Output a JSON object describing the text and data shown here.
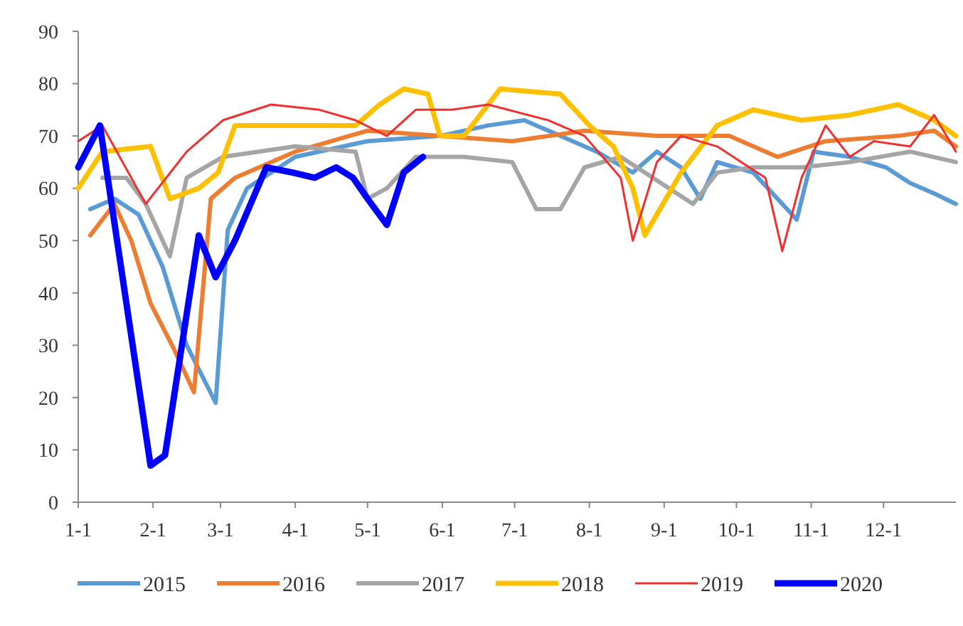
{
  "chart_data": {
    "type": "line",
    "xlim": [
      "--01-01",
      "--12-31"
    ],
    "xticks": [
      {
        "value": "--01-01",
        "label": "1-1"
      },
      {
        "value": "--02-01",
        "label": "2-1"
      },
      {
        "value": "--03-01",
        "label": "3-1"
      },
      {
        "value": "--04-01",
        "label": "4-1"
      },
      {
        "value": "--05-01",
        "label": "5-1"
      },
      {
        "value": "--06-01",
        "label": "6-1"
      },
      {
        "value": "--07-01",
        "label": "7-1"
      },
      {
        "value": "--08-01",
        "label": "8-1"
      },
      {
        "value": "--09-01",
        "label": "9-1"
      },
      {
        "value": "--10-01",
        "label": "10-1"
      },
      {
        "value": "--11-01",
        "label": "11-1"
      },
      {
        "value": "--12-01",
        "label": "12-1"
      }
    ],
    "ylim": [
      0,
      90
    ],
    "yticks": [
      0,
      10,
      20,
      30,
      40,
      50,
      60,
      70,
      80,
      90
    ],
    "grid": false,
    "legend": "bottom",
    "line_style": "solid",
    "series": [
      {
        "name": "2015",
        "color": "#5b9bd5",
        "x": [
          "--01-06",
          "--01-16",
          "--01-26",
          "--02-05",
          "--02-15",
          "--02-27",
          "--03-04",
          "--03-12",
          "--04-01",
          "--05-01",
          "--05-31",
          "--06-20",
          "--07-05",
          "--07-20",
          "--08-04",
          "--08-19",
          "--08-29",
          "--09-08",
          "--09-16",
          "--09-23",
          "--10-08",
          "--10-18",
          "--10-26",
          "--11-02",
          "--11-17",
          "--12-02",
          "--12-12",
          "--12-22",
          "--12-31"
        ],
        "values": [
          56,
          58,
          55,
          45,
          30,
          19,
          52,
          60,
          66,
          69,
          70,
          72,
          73,
          70,
          67,
          63,
          67,
          64,
          58,
          65,
          63,
          58,
          54,
          67,
          66,
          64,
          61,
          59,
          57
        ]
      },
      {
        "name": "2016",
        "color": "#ed7d31",
        "x": [
          "--01-06",
          "--01-16",
          "--01-23",
          "--01-31",
          "--02-10",
          "--02-18",
          "--02-25",
          "--03-07",
          "--04-01",
          "--05-01",
          "--05-31",
          "--06-30",
          "--07-30",
          "--08-29",
          "--09-28",
          "--10-18",
          "--11-07",
          "--12-07",
          "--12-22",
          "--12-31"
        ],
        "values": [
          51,
          57,
          50,
          38,
          29,
          21,
          58,
          62,
          67,
          71,
          70,
          69,
          71,
          70,
          70,
          66,
          69,
          70,
          71,
          68
        ]
      },
      {
        "name": "2017",
        "color": "#a5a5a5",
        "x": [
          "--01-11",
          "--01-21",
          "--01-29",
          "--02-05",
          "--02-08",
          "--02-15",
          "--03-02",
          "--04-01",
          "--04-26",
          "--05-01",
          "--05-09",
          "--05-21",
          "--06-10",
          "--06-30",
          "--07-10",
          "--07-20",
          "--07-30",
          "--08-14",
          "--09-03",
          "--09-13",
          "--09-23",
          "--10-08",
          "--10-28",
          "--11-17",
          "--12-12",
          "--12-31"
        ],
        "values": [
          62,
          62,
          57,
          50,
          47,
          62,
          66,
          68,
          67,
          58,
          60,
          66,
          66,
          65,
          56,
          56,
          64,
          66,
          60,
          57,
          63,
          64,
          64,
          65,
          67,
          65
        ]
      },
      {
        "name": "2018",
        "color": "#ffc000",
        "x": [
          "--01-01",
          "--01-11",
          "--01-31",
          "--02-08",
          "--02-20",
          "--02-28",
          "--03-07",
          "--04-01",
          "--04-26",
          "--05-06",
          "--05-16",
          "--05-26",
          "--05-31",
          "--06-10",
          "--06-25",
          "--07-20",
          "--08-01",
          "--08-11",
          "--08-19",
          "--08-24",
          "--09-08",
          "--09-23",
          "--10-08",
          "--10-28",
          "--11-17",
          "--12-07",
          "--12-22",
          "--12-31"
        ],
        "values": [
          60,
          67,
          68,
          58,
          60,
          63,
          72,
          72,
          72,
          76,
          79,
          78,
          70,
          70,
          79,
          78,
          72,
          68,
          60,
          51,
          63,
          72,
          75,
          73,
          74,
          76,
          73,
          70
        ]
      },
      {
        "name": "2019",
        "color": "#f03030",
        "x": [
          "--01-01",
          "--01-11",
          "--01-29",
          "--02-15",
          "--03-02",
          "--03-22",
          "--04-11",
          "--04-26",
          "--05-09",
          "--05-21",
          "--06-05",
          "--06-20",
          "--07-15",
          "--07-30",
          "--08-14",
          "--08-19",
          "--08-29",
          "--09-08",
          "--09-23",
          "--10-13",
          "--10-20",
          "--10-28",
          "--11-07",
          "--11-17",
          "--11-27",
          "--12-12",
          "--12-22",
          "--12-31"
        ],
        "values": [
          69,
          72,
          57,
          67,
          73,
          76,
          75,
          73,
          70,
          75,
          75,
          76,
          73,
          70,
          62,
          50,
          65,
          70,
          68,
          62,
          48,
          62,
          72,
          66,
          69,
          68,
          74,
          67
        ]
      },
      {
        "name": "2020",
        "color": "#0000ff",
        "x": [
          "--01-01",
          "--01-10",
          "--01-31",
          "--02-06",
          "--02-20",
          "--02-27",
          "--03-07",
          "--03-20",
          "--03-31",
          "--04-09",
          "--04-18",
          "--04-25",
          "--05-01",
          "--05-09",
          "--05-16",
          "--05-24"
        ],
        "values": [
          64,
          72,
          7,
          9,
          51,
          43,
          50,
          64,
          63,
          62,
          64,
          62,
          58,
          53,
          63,
          66
        ]
      }
    ]
  }
}
